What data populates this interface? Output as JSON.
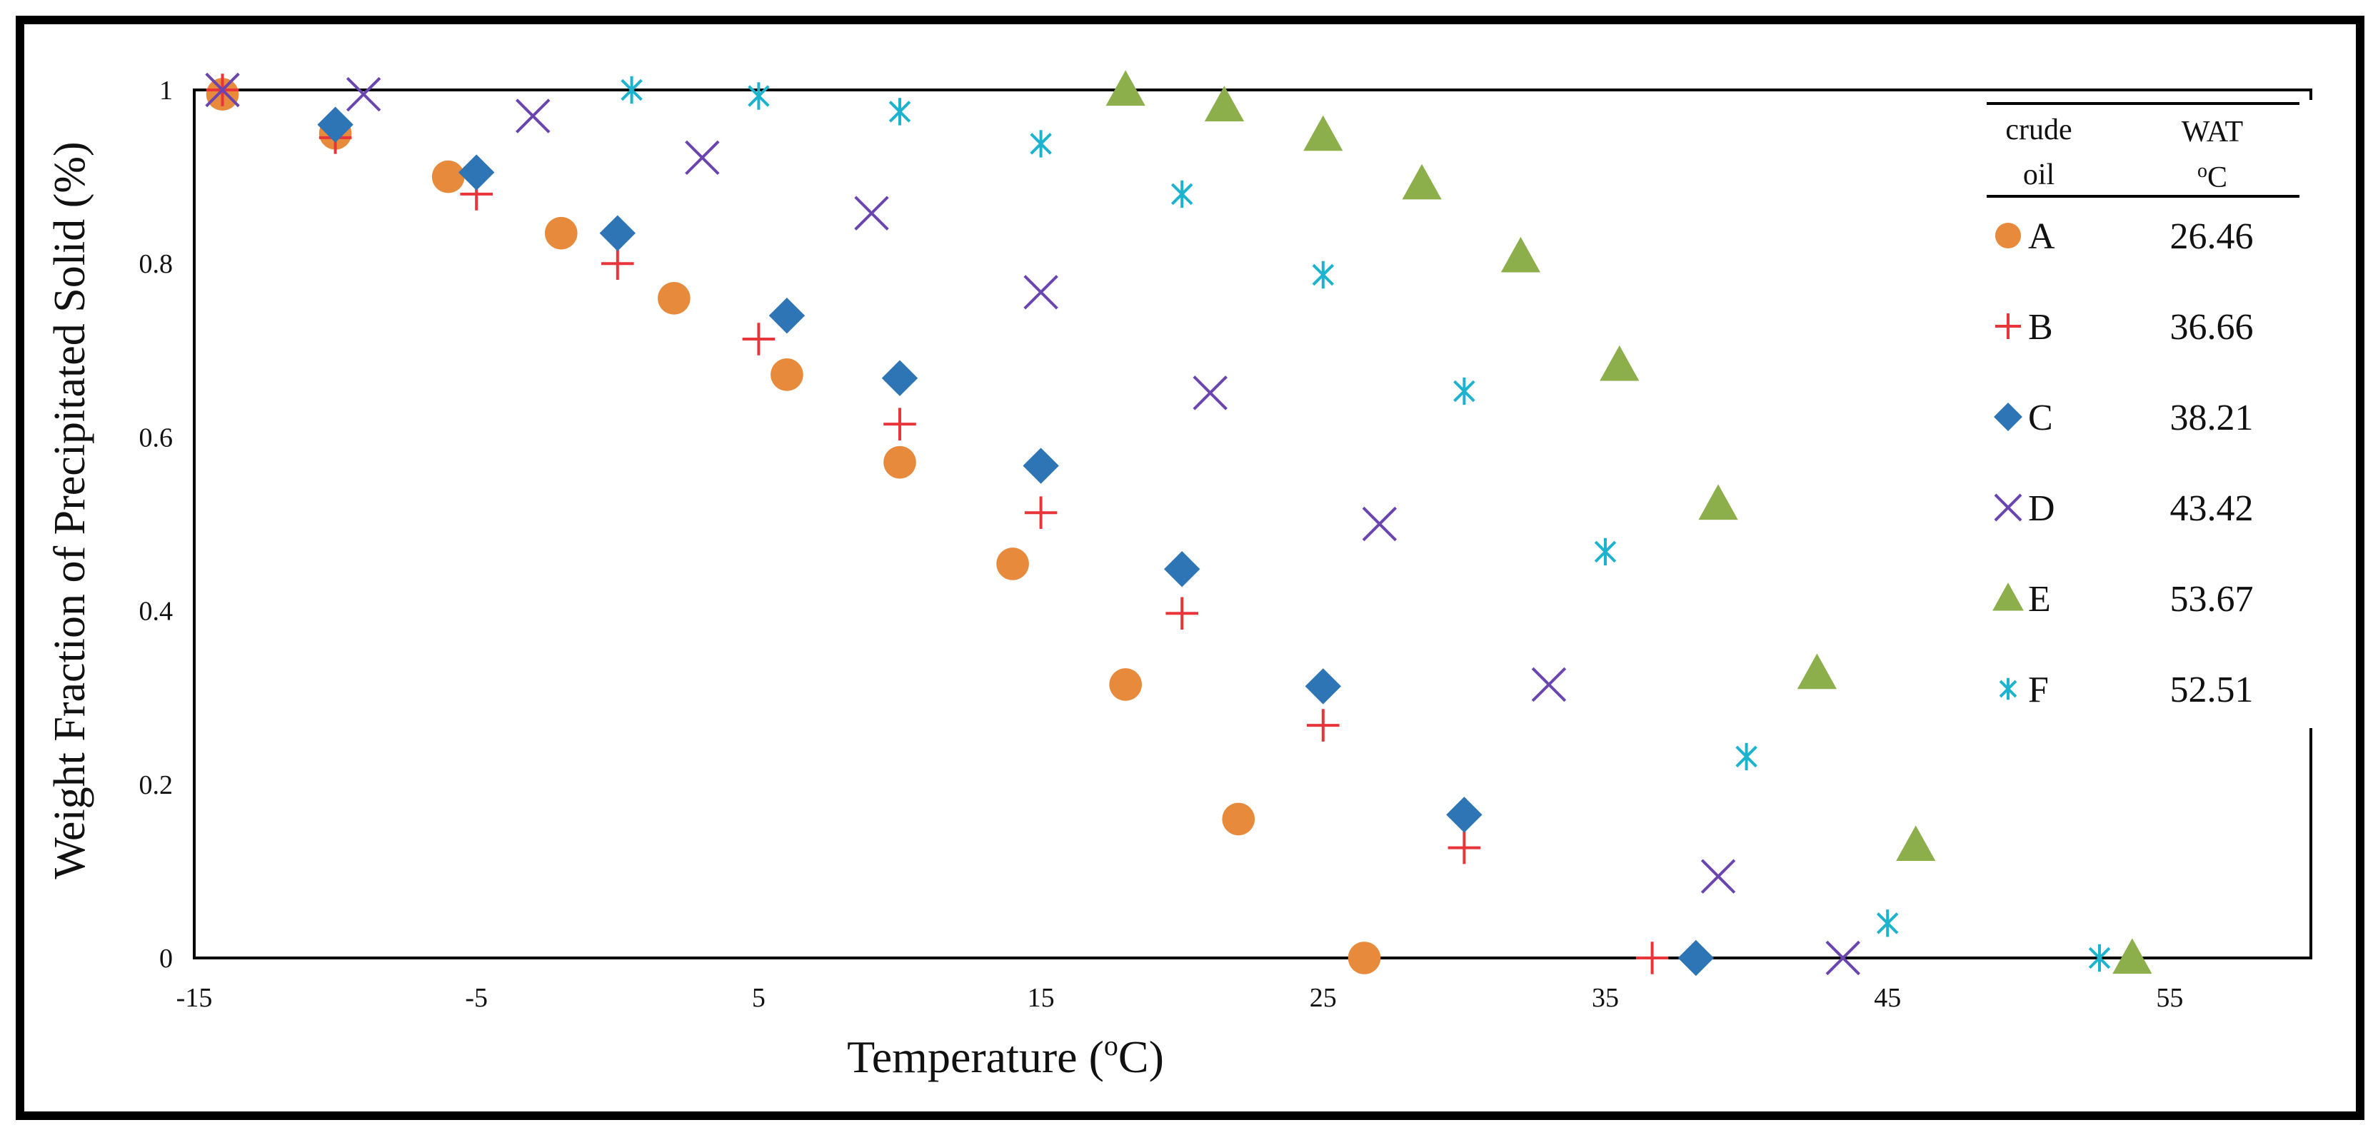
{
  "chart_data": {
    "type": "scatter",
    "xlabel": "Temperature (",
    "xlabel_sup": "o",
    "xlabel_tail": "C)",
    "ylabel": "Weight Fraction of Precipitated Solid (%)",
    "xlim": [
      -15,
      60
    ],
    "ylim": [
      0,
      1
    ],
    "xticks": [
      "-15",
      "-5",
      "5",
      "15",
      "25",
      "35",
      "45",
      "55"
    ],
    "xtick_values": [
      -15,
      -5,
      5,
      15,
      25,
      35,
      45,
      55
    ],
    "yticks": [
      "0",
      "0.2",
      "0.4",
      "0.6",
      "0.8",
      "1"
    ],
    "ytick_values": [
      0,
      0.2,
      0.4,
      0.6,
      0.8,
      1
    ],
    "legend": {
      "header_col1_line1": "crude",
      "header_col1_line2": "oil",
      "header_col2_line1": "WAT",
      "header_col2_line2_sup": "o",
      "header_col2_line2": "C",
      "position": "top-right"
    },
    "series": [
      {
        "name": "A",
        "wat": "26.46",
        "marker": "circle",
        "color": "#E88A3C",
        "x": [
          -14,
          -10,
          -6,
          -2,
          2,
          6,
          10,
          14,
          18,
          22,
          26.46
        ],
        "y": [
          0.995,
          0.95,
          0.9,
          0.835,
          0.76,
          0.672,
          0.571,
          0.454,
          0.315,
          0.16,
          0
        ]
      },
      {
        "name": "B",
        "wat": "36.66",
        "marker": "plus",
        "color": "#E8353A",
        "x": [
          -14,
          -10,
          -5,
          0,
          5,
          10,
          15,
          20,
          25,
          30,
          36.66
        ],
        "y": [
          1.0,
          0.945,
          0.88,
          0.8,
          0.713,
          0.615,
          0.513,
          0.397,
          0.268,
          0.127,
          0
        ]
      },
      {
        "name": "C",
        "wat": "38.21",
        "marker": "diamond",
        "color": "#2E75B6",
        "x": [
          -10,
          -5,
          0,
          6,
          10,
          15,
          20,
          25,
          30,
          38.21
        ],
        "y": [
          0.96,
          0.905,
          0.835,
          0.74,
          0.668,
          0.567,
          0.448,
          0.313,
          0.165,
          0
        ]
      },
      {
        "name": "D",
        "wat": "43.42",
        "marker": "x",
        "color": "#6A45B0",
        "x": [
          -14,
          -9,
          -3,
          3,
          9,
          15,
          21,
          27,
          33,
          39,
          43.42
        ],
        "y": [
          1.0,
          0.995,
          0.97,
          0.922,
          0.858,
          0.767,
          0.651,
          0.5,
          0.315,
          0.094,
          0
        ]
      },
      {
        "name": "E",
        "wat": "53.67",
        "marker": "triangle",
        "color": "#8CAF4B",
        "x": [
          18,
          21.5,
          25,
          28.5,
          32,
          35.5,
          39,
          42.5,
          46,
          53.67
        ],
        "y": [
          1.0,
          0.982,
          0.948,
          0.892,
          0.808,
          0.683,
          0.523,
          0.328,
          0.13,
          0
        ]
      },
      {
        "name": "F",
        "wat": "52.51",
        "marker": "asterisk",
        "color": "#1DB3CF",
        "x": [
          0.5,
          5,
          10,
          15,
          20,
          25,
          30,
          35,
          40,
          45,
          52.51
        ],
        "y": [
          1.0,
          0.993,
          0.975,
          0.938,
          0.88,
          0.787,
          0.653,
          0.468,
          0.232,
          0.04,
          0
        ]
      }
    ]
  }
}
